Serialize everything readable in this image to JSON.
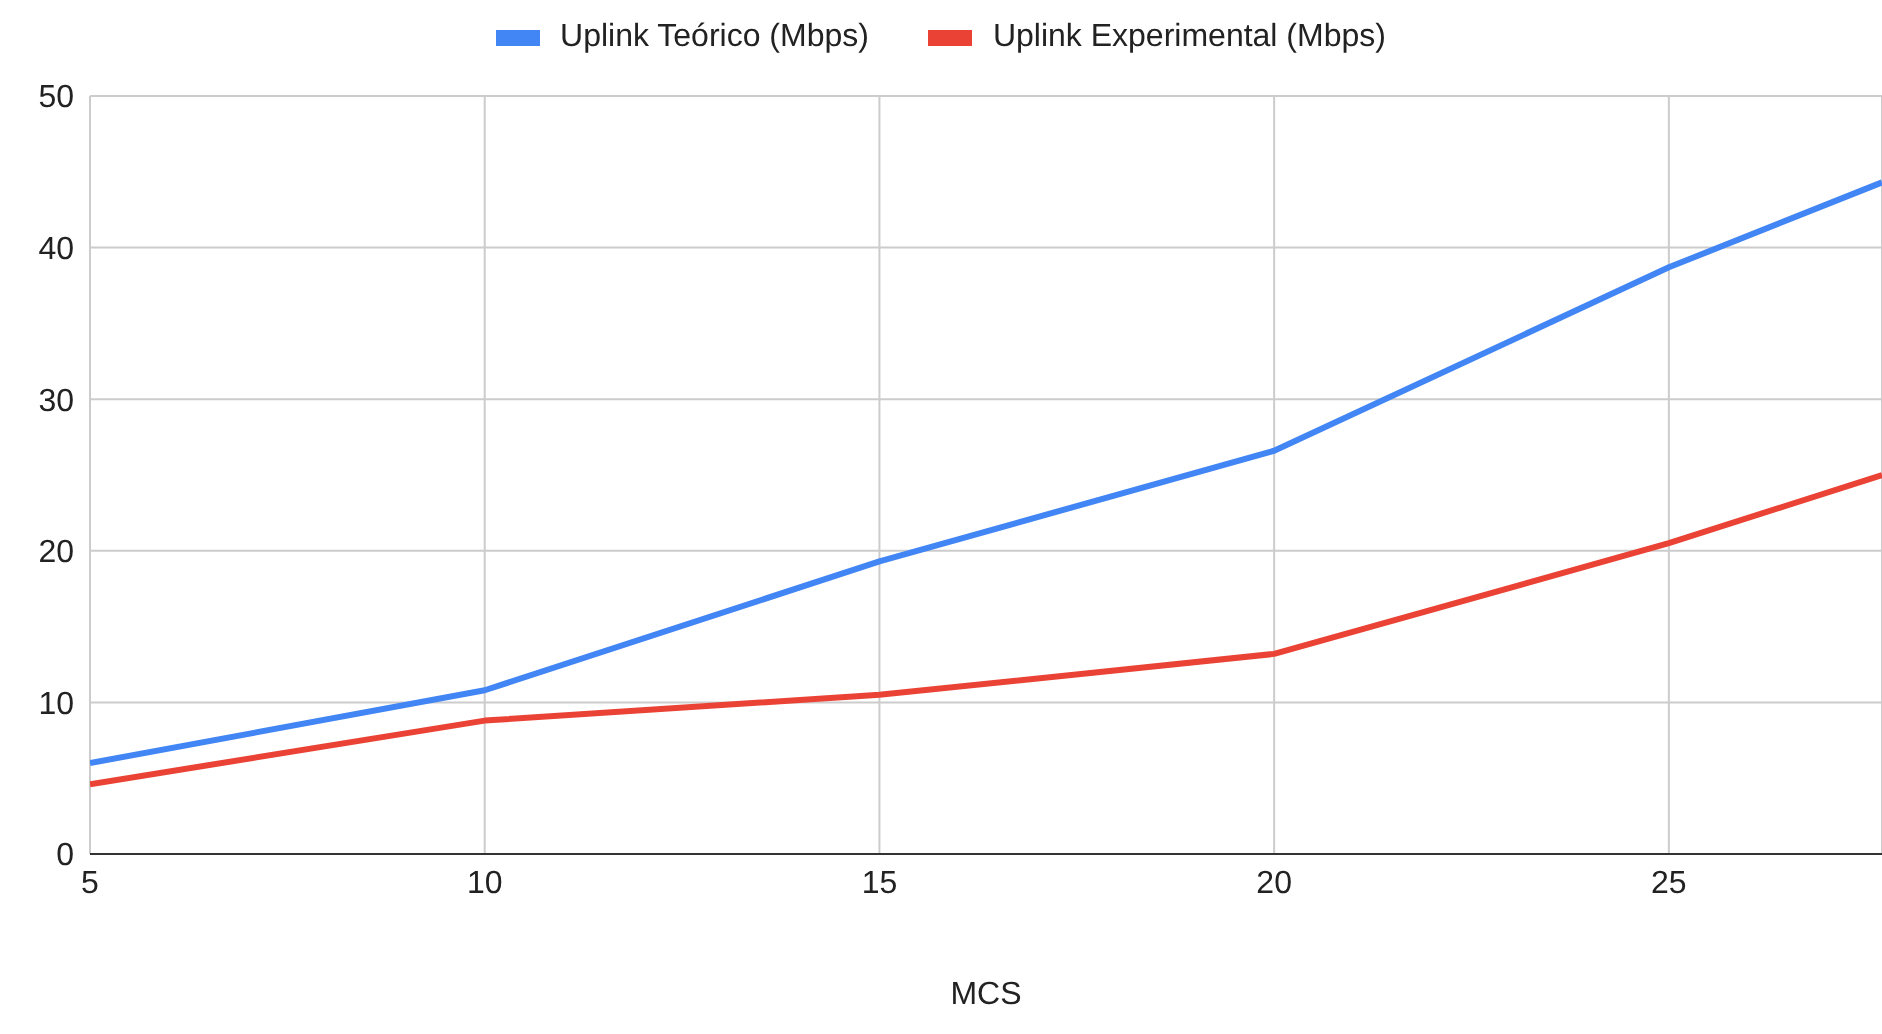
{
  "chart_data": {
    "type": "line",
    "xlabel": "MCS",
    "x": [
      5,
      10,
      15,
      20,
      25,
      27.7
    ],
    "series": [
      {
        "name": "Uplink Teórico (Mbps)",
        "color": "#4285f4",
        "values": [
          6.0,
          10.8,
          19.3,
          26.6,
          38.7,
          44.3
        ]
      },
      {
        "name": "Uplink Experimental (Mbps)",
        "color": "#ea4335",
        "values": [
          4.6,
          8.8,
          10.5,
          13.2,
          20.5,
          25.0
        ]
      }
    ],
    "xlim": [
      5,
      27.7
    ],
    "xticks": [
      5,
      10,
      15,
      20,
      25
    ],
    "ylim": [
      0,
      50
    ],
    "yticks": [
      0,
      10,
      20,
      30,
      40,
      50
    ],
    "grid": true,
    "legend": "top",
    "marker": "none",
    "line_style": "solid"
  }
}
